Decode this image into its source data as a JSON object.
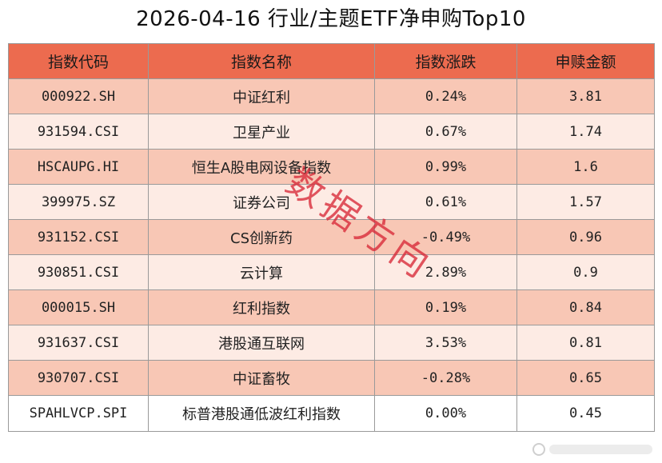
{
  "title": "2026-04-16 行业/主题ETF净申购Top10",
  "table": {
    "headers": [
      "指数代码",
      "指数名称",
      "指数涨跌",
      "申赎金额"
    ],
    "rows": [
      {
        "code": "000922.SH",
        "name": "中证红利",
        "change": "0.24%",
        "amount": "3.81"
      },
      {
        "code": "931594.CSI",
        "name": "卫星产业",
        "change": "0.67%",
        "amount": "1.74"
      },
      {
        "code": "HSCAUPG.HI",
        "name": "恒生A股电网设备指数",
        "change": "0.99%",
        "amount": "1.6"
      },
      {
        "code": "399975.SZ",
        "name": "证券公司",
        "change": "0.61%",
        "amount": "1.57"
      },
      {
        "code": "931152.CSI",
        "name": "CS创新药",
        "change": "-0.49%",
        "amount": "0.96"
      },
      {
        "code": "930851.CSI",
        "name": "云计算",
        "change": "2.89%",
        "amount": "0.9"
      },
      {
        "code": "000015.SH",
        "name": "红利指数",
        "change": "0.19%",
        "amount": "0.84"
      },
      {
        "code": "931637.CSI",
        "name": "港股通互联网",
        "change": "3.53%",
        "amount": "0.81"
      },
      {
        "code": "930707.CSI",
        "name": "中证畜牧",
        "change": "-0.28%",
        "amount": "0.65"
      },
      {
        "code": "SPAHLVCP.SPI",
        "name": "标普港股通低波红利指数",
        "change": "0.00%",
        "amount": "0.45"
      }
    ]
  },
  "watermark": "数据方向",
  "colors": {
    "header_bg": "#ec6b4f",
    "row_odd_bg": "#f8c7b5",
    "row_even_bg": "#fdebe4",
    "watermark": "#d72837"
  }
}
